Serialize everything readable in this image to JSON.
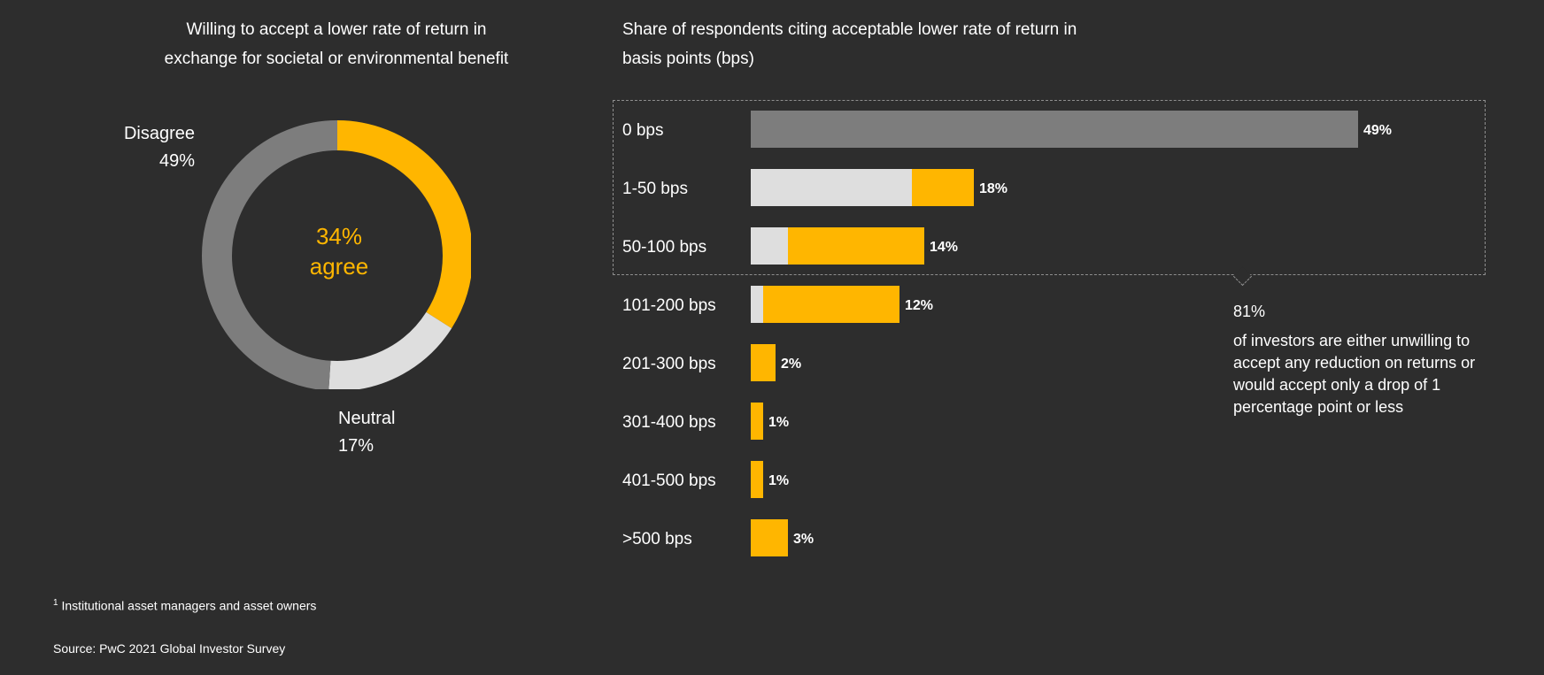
{
  "donut": {
    "title": "Willing to accept a lower rate of return in exchange for societal or environmental benefit",
    "center_pct": "34%",
    "center_word": "agree",
    "disagree_label": "Disagree",
    "disagree_pct": "49%",
    "neutral_label": "Neutral",
    "neutral_pct": "17%"
  },
  "bars": {
    "title": "Share of respondents citing acceptable lower rate of return in basis points (bps)"
  },
  "note": {
    "pct": "81%",
    "text": "of investors are either unwilling to accept any reduction on returns or would accept only a drop of 1 percentage point or less"
  },
  "footnote": {
    "marker": "1",
    "text": "Institutional asset managers and asset owners"
  },
  "source": "Source: PwC 2021 Global Investor Survey",
  "colors": {
    "background": "#2d2d2d",
    "accent": "#ffb600",
    "dark_grey": "#7d7d7d",
    "light_grey": "#dedede"
  },
  "chart_data": [
    {
      "type": "pie",
      "title": "Willing to accept a lower rate of return in exchange for societal or environmental benefit",
      "categories": [
        "Agree",
        "Neutral",
        "Disagree"
      ],
      "values": [
        34,
        17,
        49
      ]
    },
    {
      "type": "bar",
      "orientation": "horizontal",
      "stacked": true,
      "title": "Share of respondents citing acceptable lower rate of return in basis points (bps)",
      "categories": [
        "0 bps",
        "1-50 bps",
        "50-100 bps",
        "101-200 bps",
        "201-300 bps",
        "301-400 bps",
        "401-500 bps",
        ">500 bps"
      ],
      "totals": [
        49,
        18,
        14,
        12,
        2,
        1,
        1,
        3
      ],
      "value_labels": [
        "49%",
        "18%",
        "14%",
        "12%",
        "2%",
        "1%",
        "1%",
        "3%"
      ],
      "series": [
        {
          "name": "grey",
          "color": "#7d7d7d",
          "values": [
            49,
            0,
            0,
            0,
            0,
            0,
            0,
            0
          ]
        },
        {
          "name": "light",
          "color": "#dedede",
          "values": [
            0,
            13,
            3,
            1,
            0,
            0,
            0,
            0
          ]
        },
        {
          "name": "accent",
          "color": "#ffb600",
          "values": [
            0,
            5,
            11,
            11,
            2,
            1,
            1,
            3
          ]
        }
      ],
      "xlim": [
        0,
        49
      ]
    }
  ]
}
